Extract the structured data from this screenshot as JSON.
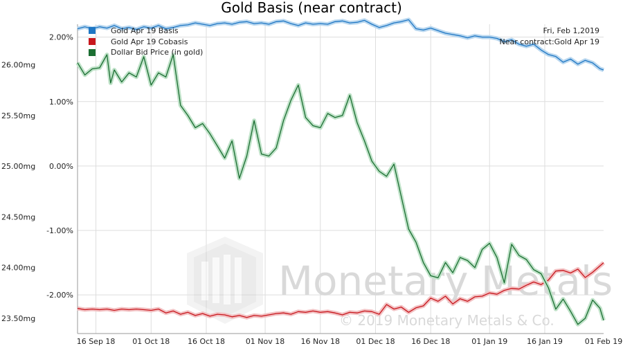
{
  "chart_data": {
    "type": "line",
    "title": "Gold Basis (near contract)",
    "date_label": "Fri, Feb 1,2019",
    "contract_label": "Near contract:Gold Apr 19",
    "watermark_text": "Monetary Metals",
    "copyright": "© 2019 Monetary Metals & Co.",
    "grid": true,
    "legend_position": "top-left",
    "x_tick_labels": [
      "16 Sep 18",
      "01 Oct 18",
      "16 Oct 18",
      "01 Nov 18",
      "16 Nov 18",
      "01 Dec 18",
      "16 Dec 18",
      "01 Jan 19",
      "16 Jan 19",
      "01 Feb 19"
    ],
    "x_tick_days": [
      0,
      15,
      30,
      46,
      61,
      76,
      91,
      107,
      122,
      138
    ],
    "xlim_days": [
      -5,
      138
    ],
    "left_axis": {
      "ticks": [
        "26.00mg",
        "25.50mg",
        "25.00mg",
        "24.50mg",
        "24.00mg",
        "23.50mg"
      ],
      "tick_values": [
        26.0,
        25.5,
        25.0,
        24.5,
        24.0,
        23.5
      ],
      "ylim": [
        23.35,
        26.4
      ]
    },
    "right_axis": {
      "ticks": [
        "2.00%",
        "1.00%",
        "0.00%",
        "-1.00%",
        "-2.00%"
      ],
      "tick_values": [
        2.0,
        1.0,
        0.0,
        -1.0,
        -2.0
      ],
      "ylim": [
        -2.6,
        2.2
      ]
    },
    "series": [
      {
        "name": "Gold Apr 19 Basis",
        "color": "#1f77c4",
        "axis": "right",
        "x_days": [
          -5,
          -3,
          -1,
          1,
          3,
          5,
          7,
          9,
          11,
          13,
          15,
          17,
          19,
          21,
          23,
          25,
          27,
          29,
          31,
          33,
          35,
          37,
          39,
          41,
          43,
          45,
          47,
          49,
          51,
          53,
          55,
          57,
          59,
          61,
          63,
          65,
          67,
          69,
          71,
          73,
          75,
          77,
          79,
          81,
          83,
          85,
          87,
          89,
          91,
          93,
          95,
          97,
          99,
          101,
          103,
          105,
          107,
          109,
          111,
          113,
          115,
          117,
          119,
          121,
          123,
          125,
          127,
          129,
          131,
          133,
          135,
          137,
          139
        ],
        "values": [
          2.13,
          2.16,
          2.13,
          2.16,
          2.14,
          2.18,
          2.13,
          2.15,
          2.12,
          2.16,
          2.14,
          2.18,
          2.13,
          2.15,
          2.18,
          2.19,
          2.22,
          2.2,
          2.18,
          2.21,
          2.22,
          2.2,
          2.23,
          2.24,
          2.21,
          2.22,
          2.2,
          2.24,
          2.25,
          2.21,
          2.18,
          2.22,
          2.2,
          2.21,
          2.2,
          2.24,
          2.25,
          2.22,
          2.23,
          2.26,
          2.2,
          2.15,
          2.18,
          2.22,
          2.24,
          2.27,
          2.13,
          2.11,
          2.14,
          2.1,
          2.06,
          2.04,
          2.02,
          1.99,
          2.02,
          2.0,
          2.0,
          1.98,
          1.93,
          1.96,
          1.89,
          1.86,
          1.89,
          1.8,
          1.73,
          1.7,
          1.61,
          1.66,
          1.58,
          1.64,
          1.6,
          1.51,
          1.49
        ]
      },
      {
        "name": "Gold Apr 19 Cobasis",
        "color": "#c8171d",
        "axis": "right",
        "x_days": [
          -5,
          -3,
          -1,
          1,
          3,
          5,
          7,
          9,
          11,
          13,
          15,
          17,
          19,
          21,
          23,
          25,
          27,
          29,
          31,
          33,
          35,
          37,
          39,
          41,
          43,
          45,
          47,
          49,
          51,
          53,
          55,
          57,
          59,
          61,
          63,
          65,
          67,
          69,
          71,
          73,
          75,
          77,
          79,
          81,
          83,
          85,
          87,
          89,
          91,
          93,
          95,
          97,
          99,
          101,
          103,
          105,
          107,
          109,
          111,
          113,
          115,
          117,
          119,
          121,
          123,
          125,
          127,
          129,
          131,
          133,
          135,
          137,
          139
        ],
        "values": [
          -2.21,
          -2.23,
          -2.22,
          -2.23,
          -2.22,
          -2.24,
          -2.22,
          -2.23,
          -2.22,
          -2.23,
          -2.24,
          -2.22,
          -2.28,
          -2.25,
          -2.3,
          -2.27,
          -2.32,
          -2.29,
          -2.33,
          -2.3,
          -2.31,
          -2.34,
          -2.32,
          -2.35,
          -2.32,
          -2.33,
          -2.31,
          -2.29,
          -2.28,
          -2.3,
          -2.26,
          -2.27,
          -2.25,
          -2.27,
          -2.26,
          -2.28,
          -2.31,
          -2.27,
          -2.28,
          -2.25,
          -2.26,
          -2.3,
          -2.15,
          -2.22,
          -2.19,
          -2.27,
          -2.2,
          -2.17,
          -2.05,
          -2.1,
          -2.02,
          -2.14,
          -2.06,
          -2.1,
          -2.03,
          -2.02,
          -1.97,
          -1.99,
          -1.93,
          -1.9,
          -1.91,
          -1.85,
          -1.8,
          -1.84,
          -1.77,
          -1.63,
          -1.62,
          -1.66,
          -1.6,
          -1.73,
          -1.65,
          -1.55,
          -1.5
        ]
      },
      {
        "name": "Dollar Bid Price (in gold)",
        "color": "#1b6e32",
        "axis": "left",
        "x_days": [
          -5,
          -3,
          -1,
          1,
          3,
          4,
          5,
          7,
          9,
          11,
          13,
          15,
          17,
          19,
          21,
          23,
          25,
          27,
          29,
          31,
          33,
          35,
          37,
          39,
          41,
          43,
          45,
          47,
          49,
          51,
          53,
          55,
          57,
          59,
          61,
          63,
          65,
          67,
          69,
          71,
          73,
          75,
          77,
          79,
          81,
          83,
          85,
          87,
          89,
          91,
          93,
          95,
          97,
          99,
          101,
          103,
          105,
          107,
          109,
          111,
          113,
          115,
          117,
          119,
          121,
          123,
          125,
          127,
          129,
          131,
          133,
          135,
          137,
          139
        ],
        "values": [
          26.02,
          25.9,
          25.96,
          25.97,
          26.1,
          25.82,
          25.95,
          25.83,
          25.92,
          25.88,
          26.08,
          25.8,
          25.92,
          25.88,
          26.1,
          25.6,
          25.5,
          25.38,
          25.42,
          25.32,
          25.2,
          25.08,
          25.25,
          24.88,
          25.1,
          25.45,
          25.12,
          25.1,
          25.18,
          25.45,
          25.65,
          25.8,
          25.48,
          25.4,
          25.38,
          25.52,
          25.48,
          25.5,
          25.7,
          25.43,
          25.25,
          25.05,
          24.95,
          24.9,
          25.02,
          24.7,
          24.38,
          24.25,
          24.05,
          23.92,
          23.9,
          24.05,
          23.95,
          24.1,
          24.07,
          24.0,
          24.18,
          24.24,
          24.1,
          23.85,
          24.23,
          24.12,
          24.08,
          23.98,
          23.94,
          23.8,
          23.59,
          23.69,
          23.57,
          23.44,
          23.5,
          23.68,
          23.6,
          23.48
        ]
      }
    ]
  }
}
